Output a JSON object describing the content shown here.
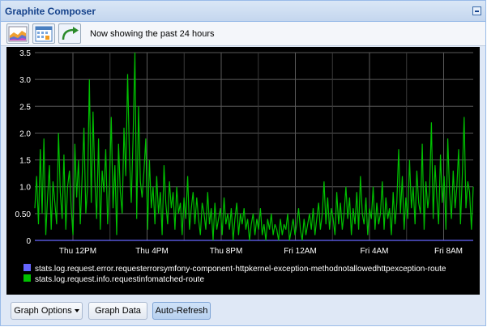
{
  "window": {
    "title": "Graphite Composer"
  },
  "toolbar": {
    "status_text": "Now showing the past 24 hours",
    "buttons": [
      "chart-icon",
      "calendar-icon",
      "refresh-arrow-icon"
    ]
  },
  "buttons": {
    "graph_options": "Graph Options",
    "graph_data": "Graph Data",
    "auto_refresh": "Auto-Refresh"
  },
  "chart_data": {
    "type": "line",
    "xlabel": "",
    "ylabel": "",
    "ylim": [
      0,
      3.5
    ],
    "yticks": [
      "0",
      "0.50",
      "1.0",
      "1.5",
      "2.0",
      "2.5",
      "3.0",
      "3.5"
    ],
    "xticks": [
      "Thu 12PM",
      "Thu  4PM",
      "Thu  8PM",
      "Fri 12AM",
      "Fri  4AM",
      "Fri  8AM"
    ],
    "grid": true,
    "legend_position": "bottom",
    "colors": {
      "background": "#000000",
      "grid": "#5a5a5a",
      "text": "#ffffff"
    },
    "series": [
      {
        "name": "stats.log.request.error.requesterrorsymfony-component-httpkernel-exception-methodnotallowedhttpexception-route",
        "color": "#6666ff",
        "values": [
          0
        ]
      },
      {
        "name": "stats.log.request.info.requestinfomatched-route",
        "color": "#00c000",
        "values": [
          0.6,
          1.2,
          0.3,
          1.7,
          0.5,
          1.9,
          0.1,
          0.8,
          1.4,
          0.2,
          1.1,
          0.7,
          0.3,
          2.0,
          0.9,
          0.4,
          1.6,
          0.2,
          1.0,
          1.3,
          0.6,
          0.1,
          1.8,
          0.8,
          1.5,
          0.3,
          1.2,
          2.1,
          0.5,
          1.0,
          3.0,
          0.7,
          2.4,
          1.1,
          0.4,
          1.9,
          0.2,
          1.3,
          0.9,
          1.7,
          0.3,
          1.0,
          2.3,
          0.6,
          1.4,
          0.1,
          1.8,
          0.9,
          0.5,
          2.1,
          1.2,
          3.1,
          1.6,
          0.7,
          1.9,
          3.6,
          0.4,
          2.5,
          1.1,
          0.8,
          1.3,
          1.9,
          0.2,
          1.5,
          0.6,
          1.0,
          0.3,
          1.2,
          0.5,
          0.9,
          0.1,
          1.4,
          0.7,
          0.3,
          1.1,
          0.6,
          0.9,
          0.2,
          1.0,
          0.5,
          0.7,
          0.1,
          0.8,
          0.4,
          1.2,
          0.2,
          0.6,
          0.9,
          0.3,
          0.8,
          0.4,
          0.1,
          0.7,
          0.5,
          0.2,
          0.9,
          0.3,
          0.6,
          0.0,
          0.7,
          0.2,
          0.4,
          0.6,
          0.1,
          0.8,
          0.3,
          0.5,
          0.2,
          0.6,
          0.0,
          0.4,
          0.7,
          0.1,
          0.5,
          0.3,
          0.6,
          0.2,
          0.4,
          0.0,
          0.3,
          0.5,
          0.1,
          0.4,
          0.2,
          0.6,
          0.1,
          0.3,
          0.0,
          0.4,
          0.2,
          0.5,
          0.1,
          0.3,
          0.2,
          0.0,
          0.4,
          0.1,
          0.3,
          0.2,
          0.5,
          0.0,
          0.2,
          0.4,
          0.1,
          0.3,
          0.6,
          0.2,
          0.0,
          0.4,
          0.1,
          0.3,
          0.5,
          0.2,
          0.6,
          0.1,
          0.4,
          0.7,
          0.2,
          0.5,
          1.1,
          0.3,
          0.8,
          0.2,
          0.6,
          0.4,
          0.1,
          0.9,
          0.3,
          0.7,
          0.2,
          0.5,
          1.0,
          0.4,
          0.8,
          0.1,
          0.6,
          0.3,
          0.9,
          0.2,
          1.2,
          0.5,
          0.3,
          0.8,
          0.1,
          0.6,
          0.4,
          1.0,
          0.2,
          0.7,
          0.3,
          0.5,
          1.1,
          0.2,
          0.8,
          0.4,
          0.6,
          0.1,
          0.9,
          0.3,
          0.7,
          1.7,
          0.5,
          1.2,
          0.2,
          0.8,
          0.4,
          1.5,
          0.6,
          1.0,
          0.3,
          1.3,
          0.7,
          0.5,
          1.8,
          0.2,
          1.1,
          0.6,
          0.9,
          2.2,
          0.4,
          1.4,
          0.8,
          0.3,
          1.6,
          0.7,
          1.2,
          0.2,
          1.9,
          0.9,
          0.4,
          1.3,
          0.6,
          1.0,
          1.7,
          0.3,
          1.2,
          2.3,
          0.6,
          1.1,
          0.9,
          0.2,
          1.0
        ]
      }
    ]
  }
}
